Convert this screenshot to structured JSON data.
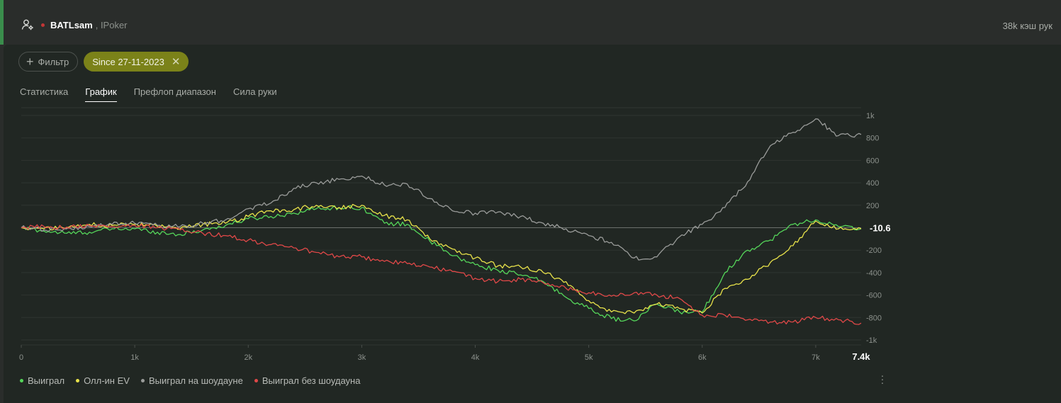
{
  "header": {
    "player": "BATLsam",
    "room": ", IPoker",
    "summary": "38k кэш рук"
  },
  "filters": {
    "filter_label": "Фильтр",
    "chip_label": "Since 27-11-2023"
  },
  "tabs": [
    {
      "label": "Статистика",
      "active": false
    },
    {
      "label": "График",
      "active": true
    },
    {
      "label": "Префлоп диапазон",
      "active": false
    },
    {
      "label": "Сила руки",
      "active": false
    }
  ],
  "colors": {
    "won": "#55d65a",
    "ev": "#e8e24a",
    "showdown": "#9a9c9a",
    "nonshowdown": "#e04848",
    "chip": "#7b8219"
  },
  "chart_data": {
    "type": "line",
    "xlim": [
      0,
      7400
    ],
    "ylim": [
      -1000,
      1000
    ],
    "x_ticks": [
      "0",
      "1k",
      "2k",
      "3k",
      "4k",
      "5k",
      "6k",
      "7k"
    ],
    "x_tick_values": [
      0,
      1000,
      2000,
      3000,
      4000,
      5000,
      6000,
      7000
    ],
    "x_end_label": "7.4k",
    "y_ticks": [
      "1k",
      "800",
      "600",
      "400",
      "200",
      "-200",
      "-400",
      "-600",
      "-800",
      "-1k"
    ],
    "y_tick_values": [
      1000,
      800,
      600,
      400,
      200,
      -200,
      -400,
      -600,
      -800,
      -1000
    ],
    "end_value_label": "-10.6",
    "grid": true,
    "legend_position": "bottom-left",
    "series": [
      {
        "name": "Выиграл",
        "color": "#55d65a",
        "x": [
          0,
          200,
          400,
          600,
          800,
          1000,
          1200,
          1400,
          1600,
          1800,
          2000,
          2200,
          2400,
          2600,
          2800,
          3000,
          3200,
          3400,
          3600,
          3800,
          4000,
          4200,
          4400,
          4600,
          4800,
          5000,
          5200,
          5400,
          5600,
          5800,
          6000,
          6200,
          6400,
          6600,
          6800,
          7000,
          7200,
          7400
        ],
        "y": [
          0,
          -30,
          -50,
          -40,
          -10,
          -10,
          -40,
          -60,
          -20,
          20,
          80,
          100,
          130,
          170,
          180,
          180,
          40,
          30,
          -120,
          -250,
          -330,
          -380,
          -420,
          -480,
          -620,
          -720,
          -810,
          -830,
          -680,
          -750,
          -750,
          -400,
          -200,
          -110,
          30,
          70,
          10,
          -10
        ]
      },
      {
        "name": "Олл-ин EV",
        "color": "#e8e24a",
        "x": [
          0,
          200,
          400,
          600,
          800,
          1000,
          1200,
          1400,
          1600,
          1800,
          2000,
          2200,
          2400,
          2600,
          2800,
          3000,
          3200,
          3400,
          3600,
          3800,
          4000,
          4200,
          4400,
          4600,
          4800,
          5000,
          5200,
          5400,
          5600,
          5800,
          6000,
          6200,
          6400,
          6600,
          6800,
          7000,
          7200,
          7400
        ],
        "y": [
          0,
          -10,
          0,
          30,
          20,
          30,
          10,
          -10,
          30,
          40,
          100,
          150,
          160,
          200,
          180,
          200,
          110,
          70,
          -100,
          -190,
          -270,
          -340,
          -350,
          -400,
          -480,
          -650,
          -750,
          -760,
          -680,
          -720,
          -760,
          -540,
          -460,
          -310,
          -160,
          60,
          -10,
          -10
        ]
      },
      {
        "name": "Выиграл на шоудауне",
        "color": "#9a9c9a",
        "x": [
          0,
          200,
          400,
          600,
          800,
          1000,
          1200,
          1400,
          1600,
          1800,
          2000,
          2200,
          2400,
          2600,
          2800,
          3000,
          3200,
          3400,
          3600,
          3800,
          4000,
          4200,
          4400,
          4600,
          4800,
          5000,
          5200,
          5400,
          5600,
          5800,
          6000,
          6200,
          6400,
          6600,
          6800,
          7000,
          7200,
          7400
        ],
        "y": [
          0,
          -20,
          -10,
          10,
          30,
          40,
          20,
          10,
          40,
          70,
          170,
          220,
          350,
          400,
          430,
          460,
          380,
          390,
          260,
          150,
          130,
          140,
          100,
          40,
          -10,
          -70,
          -130,
          -270,
          -260,
          -80,
          30,
          180,
          410,
          730,
          850,
          970,
          820,
          830
        ]
      },
      {
        "name": "Выиграл без шоудауна",
        "color": "#e04848",
        "x": [
          0,
          200,
          400,
          600,
          800,
          1000,
          1200,
          1400,
          1600,
          1800,
          2000,
          2200,
          2400,
          2600,
          2800,
          3000,
          3200,
          3400,
          3600,
          3800,
          4000,
          4200,
          4400,
          4600,
          4800,
          5000,
          5200,
          5400,
          5600,
          5800,
          6000,
          6200,
          6400,
          6600,
          6800,
          7000,
          7200,
          7400
        ],
        "y": [
          0,
          10,
          5,
          20,
          10,
          20,
          0,
          -20,
          -50,
          -70,
          -110,
          -150,
          -180,
          -220,
          -260,
          -260,
          -300,
          -320,
          -350,
          -390,
          -450,
          -480,
          -460,
          -490,
          -540,
          -580,
          -610,
          -580,
          -600,
          -630,
          -780,
          -780,
          -820,
          -840,
          -840,
          -800,
          -820,
          -850
        ]
      }
    ]
  }
}
